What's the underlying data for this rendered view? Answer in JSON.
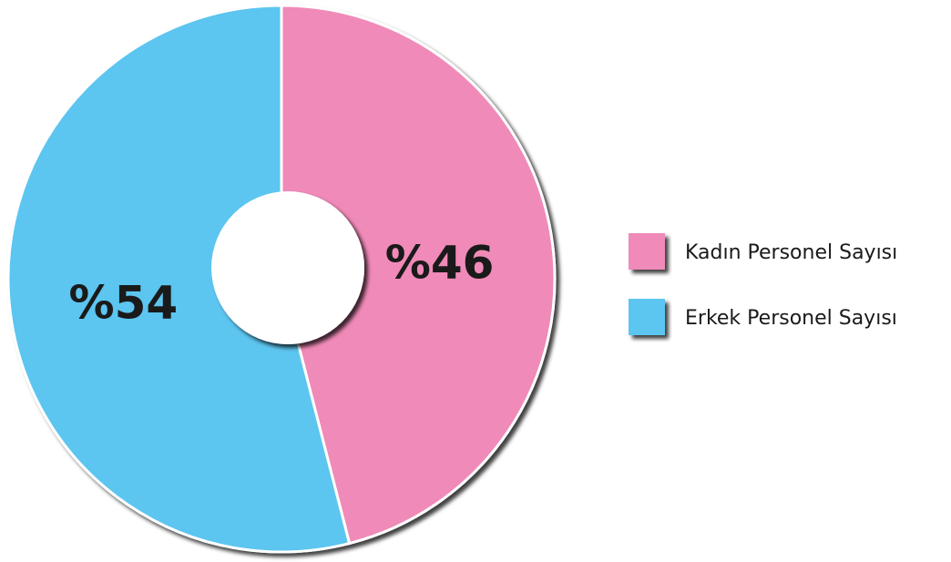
{
  "chart_data": {
    "type": "pie",
    "categories": [
      "Kadın Personel Sayısı",
      "Erkek Personel Sayısı"
    ],
    "values": [
      46,
      54
    ],
    "value_labels": [
      "%46",
      "%54"
    ],
    "colors": [
      "#f08ab8",
      "#5bc5f0"
    ],
    "legend": "right"
  }
}
